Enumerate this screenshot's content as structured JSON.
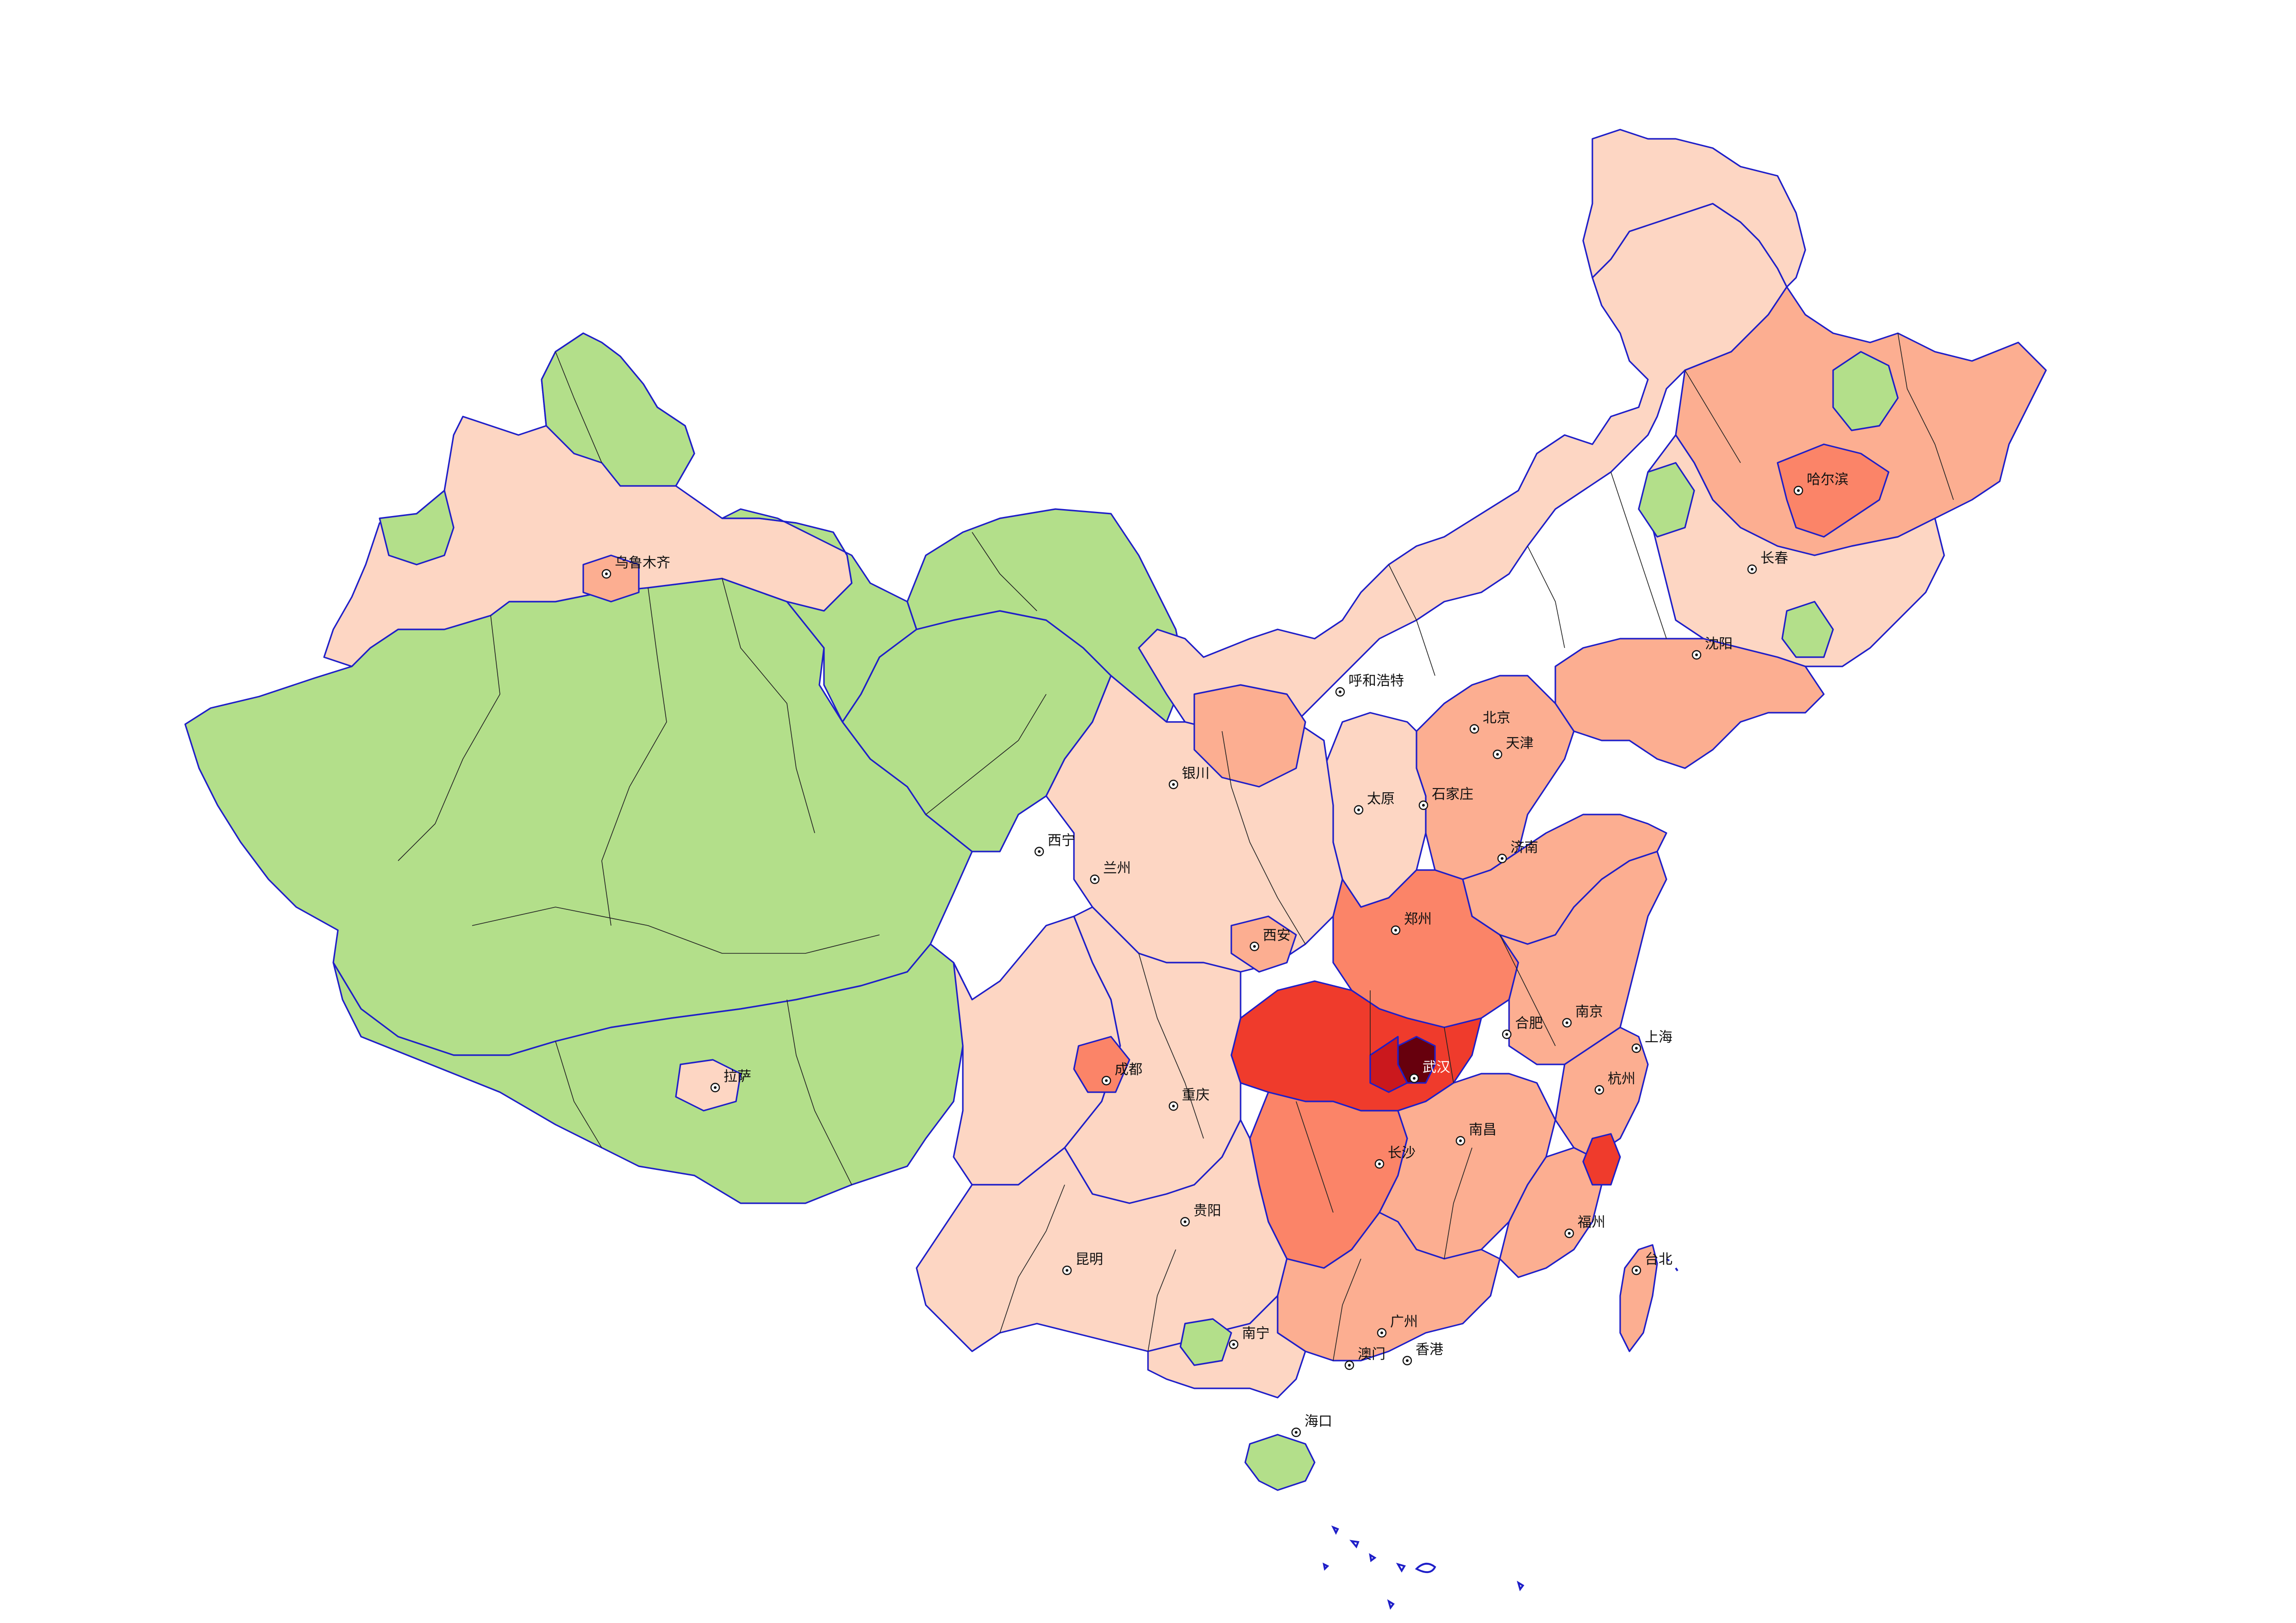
{
  "map": {
    "region": "China",
    "colors": {
      "none": "#b3df8a",
      "very_low": "#fdd6c3",
      "low": "#fcae91",
      "medium": "#fb8468",
      "high": "#ef3b2c",
      "very_high": "#cb181d",
      "extreme": "#67000d",
      "province_border": "#1e1ec8",
      "prefecture_border": "#222222"
    },
    "cities": [
      {
        "id": "urumqi",
        "name": "乌鲁木齐",
        "level": "low"
      },
      {
        "id": "lhasa",
        "name": "拉萨",
        "level": "very_low"
      },
      {
        "id": "xining",
        "name": "西宁",
        "level": "low"
      },
      {
        "id": "lanzhou",
        "name": "兰州",
        "level": "low"
      },
      {
        "id": "yinchuan",
        "name": "银川",
        "level": "very_low"
      },
      {
        "id": "hohhot",
        "name": "呼和浩特",
        "level": "very_low"
      },
      {
        "id": "beijing",
        "name": "北京",
        "level": "low"
      },
      {
        "id": "tianjin",
        "name": "天津",
        "level": "low"
      },
      {
        "id": "shijiazhuang",
        "name": "石家庄",
        "level": "low"
      },
      {
        "id": "taiyuan",
        "name": "太原",
        "level": "very_low"
      },
      {
        "id": "jinan",
        "name": "济南",
        "level": "low"
      },
      {
        "id": "xian",
        "name": "西安",
        "level": "low"
      },
      {
        "id": "zhengzhou",
        "name": "郑州",
        "level": "medium"
      },
      {
        "id": "harbin",
        "name": "哈尔滨",
        "level": "medium"
      },
      {
        "id": "changchun",
        "name": "长春",
        "level": "low"
      },
      {
        "id": "shenyang",
        "name": "沈阳",
        "level": "low"
      },
      {
        "id": "chengdu",
        "name": "成都",
        "level": "medium"
      },
      {
        "id": "chongqing",
        "name": "重庆",
        "level": "low"
      },
      {
        "id": "wuhan",
        "name": "武汉",
        "level": "extreme"
      },
      {
        "id": "hefei",
        "name": "合肥",
        "level": "medium"
      },
      {
        "id": "nanjing",
        "name": "南京",
        "level": "low"
      },
      {
        "id": "shanghai",
        "name": "上海",
        "level": "low"
      },
      {
        "id": "hangzhou",
        "name": "杭州",
        "level": "medium"
      },
      {
        "id": "changsha",
        "name": "长沙",
        "level": "medium"
      },
      {
        "id": "nanchang",
        "name": "南昌",
        "level": "medium"
      },
      {
        "id": "fuzhou",
        "name": "福州",
        "level": "low"
      },
      {
        "id": "taipei",
        "name": "台北",
        "level": "low"
      },
      {
        "id": "guiyang",
        "name": "贵阳",
        "level": "very_low"
      },
      {
        "id": "kunming",
        "name": "昆明",
        "level": "low"
      },
      {
        "id": "nanning",
        "name": "南宁",
        "level": "low"
      },
      {
        "id": "guangzhou",
        "name": "广州",
        "level": "medium"
      },
      {
        "id": "macau",
        "name": "澳门",
        "level": "low"
      },
      {
        "id": "hongkong",
        "name": "香港",
        "level": "low"
      },
      {
        "id": "haikou",
        "name": "海口",
        "level": "low"
      }
    ]
  }
}
